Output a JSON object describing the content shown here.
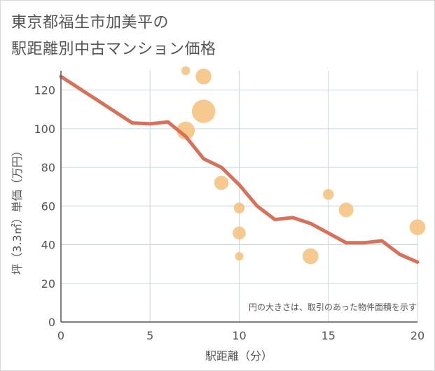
{
  "title_line1": "東京都福生市加美平の",
  "title_line2": "駅距離別中古マンション価格",
  "chart_data": {
    "type": "scatter",
    "title": "東京都福生市加美平の駅距離別中古マンション価格",
    "xlabel": "駅距離（分）",
    "ylabel": "坪（3.3㎡）単価（万円）",
    "xlim": [
      0,
      20
    ],
    "ylim": [
      0,
      130
    ],
    "xticks": [
      0,
      5,
      10,
      15,
      20
    ],
    "yticks": [
      0,
      20,
      40,
      60,
      80,
      100,
      120
    ],
    "grid": true,
    "note": "円の大きさは、取引のあった物件面積を示す",
    "colors": {
      "bubble": "#f5c07a",
      "line": "#d9705a",
      "grid": "#c8d6e2",
      "axis": "#555555"
    },
    "bubbles": [
      {
        "x": 7,
        "y": 130,
        "size": 1.0
      },
      {
        "x": 8,
        "y": 127,
        "size": 3.2
      },
      {
        "x": 8,
        "y": 109,
        "size": 7.0
      },
      {
        "x": 7,
        "y": 99,
        "size": 4.2
      },
      {
        "x": 9,
        "y": 72,
        "size": 2.6
      },
      {
        "x": 10,
        "y": 59,
        "size": 1.5
      },
      {
        "x": 10,
        "y": 46,
        "size": 2.2
      },
      {
        "x": 10,
        "y": 34,
        "size": 0.9
      },
      {
        "x": 14,
        "y": 34,
        "size": 3.2
      },
      {
        "x": 15,
        "y": 66,
        "size": 1.5
      },
      {
        "x": 16,
        "y": 58,
        "size": 2.7
      },
      {
        "x": 20,
        "y": 49,
        "size": 3.2
      }
    ],
    "trend": {
      "x": [
        0,
        1,
        2,
        3,
        4,
        5,
        6,
        7,
        8,
        9,
        10,
        11,
        12,
        13,
        14,
        15,
        16,
        17,
        18,
        19,
        20
      ],
      "y": [
        127,
        121,
        115,
        109,
        103,
        102.5,
        103.5,
        96,
        84.5,
        80,
        71,
        60,
        53,
        54,
        51,
        46,
        41,
        41,
        42,
        35,
        31
      ]
    }
  }
}
